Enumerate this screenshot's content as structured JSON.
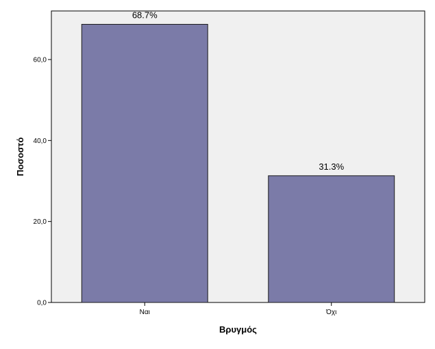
{
  "chart_data": {
    "type": "bar",
    "categories": [
      "Ναι",
      "Όχι"
    ],
    "values": [
      68.7,
      31.3
    ],
    "data_labels": [
      "68.7%",
      "31.3%"
    ],
    "xlabel": "Βρυγμός",
    "ylabel": "Ποσοστό",
    "ylim": [
      0,
      72
    ],
    "yticks": [
      0,
      20,
      40,
      60
    ],
    "ytick_labels": [
      "0,0",
      "20,0",
      "40,0",
      "60,0"
    ],
    "grid": false,
    "legend": "none",
    "colors": {
      "bar_fill": "#7b7ba8",
      "bar_stroke": "#1a1a1a",
      "plot_background": "#f0f0f0",
      "axis": "#000000"
    }
  }
}
